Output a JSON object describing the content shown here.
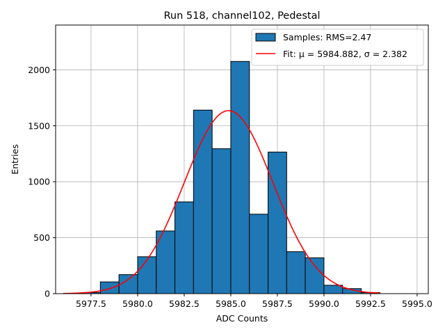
{
  "chart_data": {
    "type": "bar",
    "title": "Run 518, channel102, Pedestal",
    "xlabel": "ADC Counts",
    "ylabel": "Entries",
    "xlim": [
      5975.6,
      5995.6
    ],
    "ylim": [
      0,
      2400
    ],
    "grid": true,
    "legend_position": "top-right",
    "x_ticks": [
      5977.5,
      5980.0,
      5982.5,
      5985.0,
      5987.5,
      5990.0,
      5992.5,
      5995.0
    ],
    "x_tick_labels": [
      "5977.5",
      "5980.0",
      "5982.5",
      "5985.0",
      "5987.5",
      "5990.0",
      "5992.5",
      "5995.0"
    ],
    "y_ticks": [
      0,
      500,
      1000,
      1500,
      2000
    ],
    "y_tick_labels": [
      "0",
      "500",
      "1000",
      "1500",
      "2000"
    ],
    "bin_width": 1,
    "bin_starts": [
      5977,
      5978,
      5979,
      5980,
      5981,
      5982,
      5983,
      5984,
      5985,
      5986,
      5987,
      5988,
      5989,
      5990,
      5991,
      5992
    ],
    "values": [
      10,
      105,
      170,
      330,
      560,
      820,
      1640,
      1295,
      2075,
      710,
      1265,
      375,
      320,
      75,
      45,
      10
    ],
    "series": [
      {
        "name": "Samples: RMS=2.47",
        "kind": "histogram",
        "color": "#1f77b4",
        "edge": "#000000"
      },
      {
        "name": "Fit: μ = 5984.882, σ = 2.382",
        "kind": "gaussian",
        "mu": 5984.882,
        "sigma": 2.382,
        "amplitude": 1635,
        "x_range": [
          5976,
          5993
        ],
        "color": "#ff0000"
      }
    ]
  }
}
